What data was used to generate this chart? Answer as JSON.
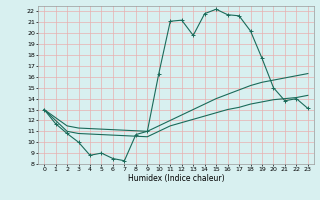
{
  "xlabel": "Humidex (Indice chaleur)",
  "bg_color": "#d8f0f0",
  "grid_color": "#e8b0b0",
  "line_color": "#1a6b5a",
  "xlim": [
    -0.5,
    23.5
  ],
  "ylim": [
    8,
    22.5
  ],
  "xticks": [
    0,
    1,
    2,
    3,
    4,
    5,
    6,
    7,
    8,
    9,
    10,
    11,
    12,
    13,
    14,
    15,
    16,
    17,
    18,
    19,
    20,
    21,
    22,
    23
  ],
  "yticks": [
    8,
    9,
    10,
    11,
    12,
    13,
    14,
    15,
    16,
    17,
    18,
    19,
    20,
    21,
    22
  ],
  "line1_x": [
    0,
    1,
    2,
    3,
    4,
    5,
    6,
    7,
    8,
    9,
    10,
    11,
    12,
    13,
    14,
    15,
    16,
    17,
    18,
    19,
    20,
    21,
    22,
    23
  ],
  "line1_y": [
    13,
    11.7,
    10.8,
    10.0,
    8.8,
    9.0,
    8.5,
    8.3,
    10.7,
    11.0,
    16.3,
    21.1,
    21.2,
    19.8,
    21.8,
    22.2,
    21.7,
    21.6,
    20.2,
    17.7,
    15.0,
    13.8,
    14.0,
    13.1
  ],
  "line2_x": [
    0,
    2,
    3,
    9,
    10,
    11,
    12,
    13,
    14,
    15,
    16,
    17,
    18,
    19,
    20,
    21,
    22,
    23
  ],
  "line2_y": [
    13,
    11.5,
    11.3,
    11.0,
    11.5,
    12.0,
    12.5,
    13.0,
    13.5,
    14.0,
    14.4,
    14.8,
    15.2,
    15.5,
    15.7,
    15.9,
    16.1,
    16.3
  ],
  "line3_x": [
    0,
    2,
    3,
    9,
    10,
    11,
    12,
    13,
    14,
    15,
    16,
    17,
    18,
    19,
    20,
    21,
    22,
    23
  ],
  "line3_y": [
    13,
    11.0,
    10.8,
    10.5,
    11.0,
    11.5,
    11.8,
    12.1,
    12.4,
    12.7,
    13.0,
    13.2,
    13.5,
    13.7,
    13.9,
    14.0,
    14.1,
    14.3
  ]
}
